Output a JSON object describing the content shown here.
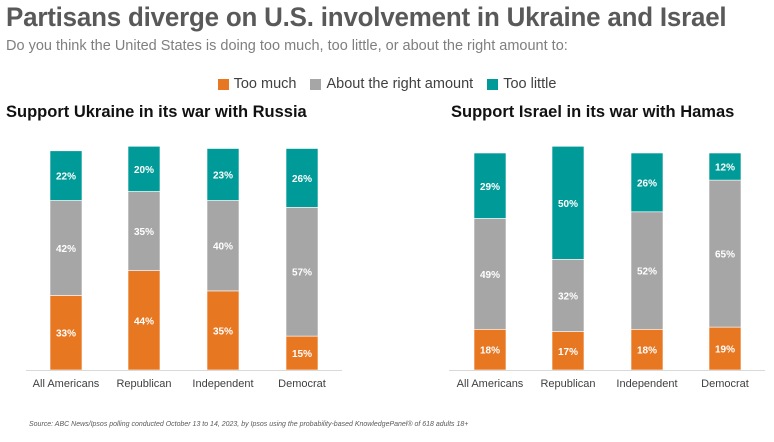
{
  "title": "Partisans diverge on U.S. involvement in Ukraine and Israel",
  "subtitle": "Do you think the United States is doing too much, too little, or about the right amount to:",
  "legend": [
    {
      "label": "Too much",
      "color": "#E87722"
    },
    {
      "label": "About the right amount",
      "color": "#A6A6A6"
    },
    {
      "label": "Too little",
      "color": "#009B98"
    }
  ],
  "source": "Source: ABC News/Ipsos polling conducted October 13 to 14, 2023, by Ipsos using the probability-based KnowledgePanel® of 618 adults 18+",
  "chart_data": [
    {
      "type": "bar",
      "stacked": true,
      "title": "Support Ukraine in its war with Russia",
      "categories": [
        "All Americans",
        "Republican",
        "Independent",
        "Democrat"
      ],
      "series": [
        {
          "name": "Too much",
          "color": "#E87722",
          "values": [
            33,
            44,
            35,
            15
          ]
        },
        {
          "name": "About the right amount",
          "color": "#A6A6A6",
          "values": [
            42,
            35,
            40,
            57
          ]
        },
        {
          "name": "Too little",
          "color": "#009B98",
          "values": [
            22,
            20,
            23,
            26
          ]
        }
      ],
      "unit": "%",
      "legend": "top-center",
      "grid": false
    },
    {
      "type": "bar",
      "stacked": true,
      "title": "Support Israel in its war with Hamas",
      "categories": [
        "All Americans",
        "Republican",
        "Independent",
        "Democrat"
      ],
      "series": [
        {
          "name": "Too much",
          "color": "#E87722",
          "values": [
            18,
            17,
            18,
            19
          ]
        },
        {
          "name": "About the right amount",
          "color": "#A6A6A6",
          "values": [
            49,
            32,
            52,
            65
          ]
        },
        {
          "name": "Too little",
          "color": "#009B98",
          "values": [
            29,
            50,
            26,
            12
          ]
        }
      ],
      "unit": "%",
      "legend": "top-center",
      "grid": false
    }
  ]
}
